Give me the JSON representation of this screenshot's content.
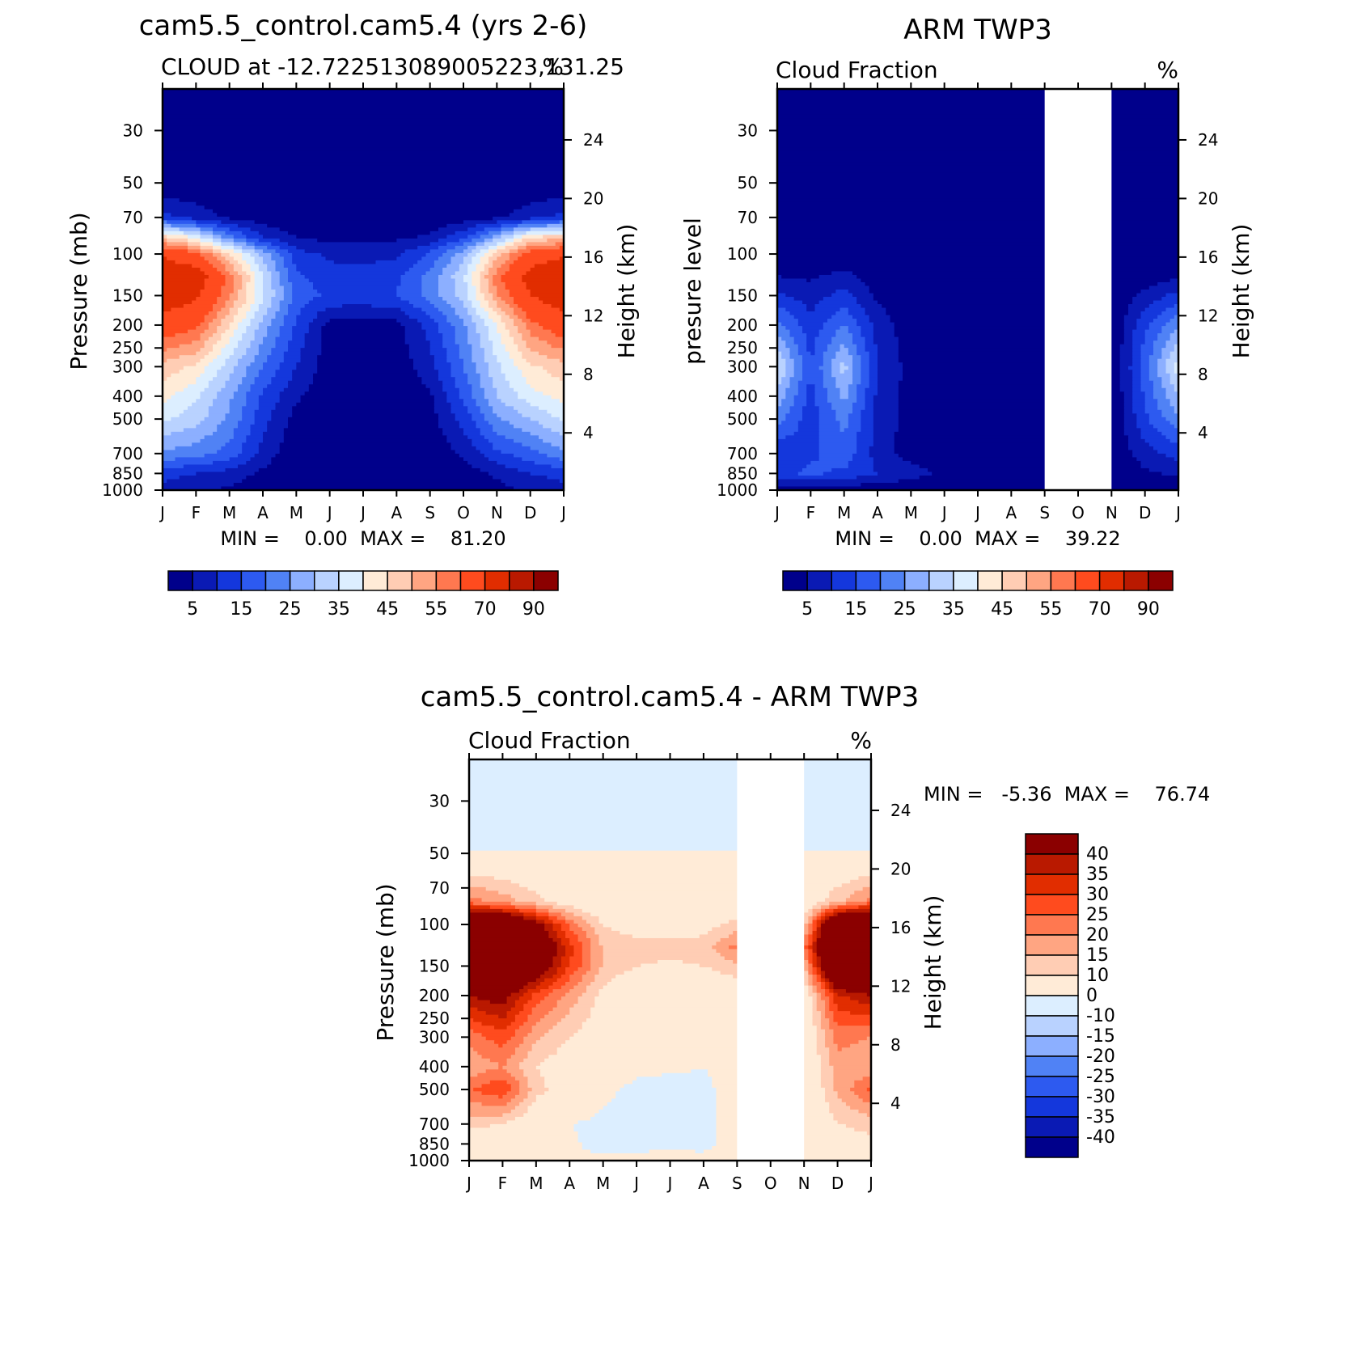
{
  "chart_data": [
    {
      "type": "heatmap",
      "id": "p1",
      "title": "cam5.5_control.cam5.4 (yrs 2-6)",
      "subtitle_left": "CLOUD at -12.722513089005223,131.25",
      "subtitle_right": "%",
      "ylabel": "Pressure (mb)",
      "ylabel_right": "Height (km)",
      "x_categories": [
        "J",
        "F",
        "M",
        "A",
        "M",
        "J",
        "J",
        "A",
        "S",
        "O",
        "N",
        "D",
        "J"
      ],
      "y_ticks": [
        "30",
        "50",
        "70",
        "100",
        "150",
        "200",
        "250",
        "300",
        "400",
        "500",
        "700",
        "850",
        "1000"
      ],
      "y_right_ticks": [
        "24",
        "20",
        "16",
        "12",
        "8",
        "4"
      ],
      "ylim": [
        1000,
        20
      ],
      "stats": "MIN =    0.00  MAX =    81.20",
      "colorbar_labels": [
        "5",
        "15",
        "25",
        "35",
        "45",
        "55",
        "70",
        "90"
      ],
      "missing_months": [],
      "colors": [
        "#00008b",
        "#0a1ab4",
        "#1437dc",
        "#2d5af0",
        "#5082f5",
        "#8cafff",
        "#b9d2ff",
        "#dceeff",
        "#ffebd7",
        "#ffcdb4",
        "#ffa582",
        "#ff7850",
        "#ff4b1e",
        "#e12d00",
        "#b91900",
        "#8b0000"
      ],
      "levels": [
        5,
        10,
        15,
        20,
        25,
        30,
        35,
        40,
        45,
        50,
        55,
        60,
        70,
        80,
        90
      ],
      "rows": [
        {
          "p": 20,
          "v": [
            0,
            0,
            0,
            0,
            0,
            0,
            0,
            0,
            0,
            0,
            0,
            0,
            0
          ]
        },
        {
          "p": 50,
          "v": [
            0,
            0,
            0,
            0,
            0,
            0,
            0,
            0,
            0,
            0,
            0,
            0,
            0
          ]
        },
        {
          "p": 70,
          "v": [
            12,
            8,
            4,
            2,
            1,
            1,
            1,
            1,
            1,
            2,
            4,
            8,
            12
          ]
        },
        {
          "p": 85,
          "v": [
            48,
            38,
            22,
            10,
            5,
            3,
            3,
            4,
            6,
            14,
            28,
            45,
            48
          ]
        },
        {
          "p": 100,
          "v": [
            68,
            62,
            45,
            28,
            12,
            9,
            8,
            9,
            16,
            28,
            48,
            64,
            68
          ]
        },
        {
          "p": 125,
          "v": [
            80,
            76,
            58,
            35,
            16,
            12,
            12,
            14,
            22,
            34,
            58,
            74,
            80
          ]
        },
        {
          "p": 150,
          "v": [
            76,
            72,
            56,
            36,
            18,
            14,
            14,
            15,
            22,
            32,
            54,
            70,
            76
          ]
        },
        {
          "p": 200,
          "v": [
            66,
            62,
            45,
            28,
            14,
            3,
            2,
            3,
            12,
            24,
            40,
            58,
            66
          ]
        },
        {
          "p": 300,
          "v": [
            48,
            44,
            32,
            20,
            10,
            2,
            1,
            2,
            8,
            20,
            34,
            44,
            48
          ]
        },
        {
          "p": 400,
          "v": [
            42,
            36,
            26,
            14,
            6,
            1,
            0,
            1,
            4,
            16,
            30,
            38,
            42
          ]
        },
        {
          "p": 500,
          "v": [
            36,
            32,
            24,
            12,
            3,
            0,
            0,
            0,
            3,
            12,
            24,
            30,
            36
          ]
        },
        {
          "p": 700,
          "v": [
            24,
            22,
            18,
            8,
            1,
            0,
            0,
            0,
            1,
            6,
            14,
            18,
            24
          ]
        },
        {
          "p": 850,
          "v": [
            12,
            10,
            8,
            4,
            0,
            0,
            0,
            0,
            0,
            2,
            6,
            10,
            12
          ]
        },
        {
          "p": 1000,
          "v": [
            8,
            6,
            4,
            1,
            0,
            0,
            0,
            0,
            0,
            1,
            3,
            6,
            8
          ]
        }
      ]
    },
    {
      "type": "heatmap",
      "id": "p2",
      "title": "ARM TWP3",
      "subtitle_left": "Cloud Fraction",
      "subtitle_right": "%",
      "ylabel": "presure level",
      "ylabel_right": "Height (km)",
      "x_categories": [
        "J",
        "F",
        "M",
        "A",
        "M",
        "J",
        "J",
        "A",
        "S",
        "O",
        "N",
        "D",
        "J"
      ],
      "y_ticks": [
        "30",
        "50",
        "70",
        "100",
        "150",
        "200",
        "250",
        "300",
        "400",
        "500",
        "700",
        "850",
        "1000"
      ],
      "y_right_ticks": [
        "24",
        "20",
        "16",
        "12",
        "8",
        "4"
      ],
      "ylim": [
        1000,
        20
      ],
      "stats": "MIN =    0.00  MAX =    39.22",
      "colorbar_labels": [
        "5",
        "15",
        "25",
        "35",
        "45",
        "55",
        "70",
        "90"
      ],
      "missing_months": [
        8,
        10
      ],
      "colors": [
        "#00008b",
        "#0a1ab4",
        "#1437dc",
        "#2d5af0",
        "#5082f5",
        "#8cafff",
        "#b9d2ff",
        "#dceeff",
        "#ffebd7",
        "#ffcdb4",
        "#ffa582",
        "#ff7850",
        "#ff4b1e",
        "#e12d00",
        "#b91900",
        "#8b0000"
      ],
      "levels": [
        5,
        10,
        15,
        20,
        25,
        30,
        35,
        40,
        45,
        50,
        55,
        60,
        70,
        80,
        90
      ],
      "rows": [
        {
          "p": 20,
          "v": [
            0,
            0,
            0,
            0,
            0,
            0,
            0,
            0,
            0,
            0,
            0,
            0,
            0
          ]
        },
        {
          "p": 100,
          "v": [
            0,
            0,
            1,
            0,
            0,
            0,
            0,
            0,
            0,
            0,
            0,
            0,
            0
          ]
        },
        {
          "p": 130,
          "v": [
            6,
            5,
            8,
            2,
            0,
            0,
            0,
            0,
            0,
            0,
            0,
            3,
            6
          ]
        },
        {
          "p": 200,
          "v": [
            22,
            12,
            20,
            8,
            2,
            0,
            0,
            0,
            0,
            0,
            0,
            14,
            24
          ]
        },
        {
          "p": 300,
          "v": [
            36,
            15,
            32,
            10,
            3,
            0,
            0,
            0,
            0,
            0,
            0,
            18,
            38
          ]
        },
        {
          "p": 500,
          "v": [
            22,
            12,
            22,
            8,
            3,
            0,
            0,
            0,
            0,
            0,
            0,
            14,
            24
          ]
        },
        {
          "p": 700,
          "v": [
            10,
            14,
            18,
            8,
            2,
            0,
            0,
            0,
            0,
            0,
            0,
            8,
            12
          ]
        },
        {
          "p": 850,
          "v": [
            14,
            16,
            14,
            10,
            8,
            3,
            0,
            0,
            0,
            0,
            0,
            4,
            6
          ]
        },
        {
          "p": 1000,
          "v": [
            2,
            2,
            2,
            1,
            0,
            0,
            0,
            0,
            0,
            0,
            0,
            0,
            1
          ]
        }
      ]
    },
    {
      "type": "heatmap",
      "id": "p3",
      "title": "cam5.5_control.cam5.4 - ARM TWP3",
      "subtitle_left": "Cloud Fraction",
      "subtitle_right": "%",
      "ylabel": "Pressure (mb)",
      "ylabel_right": "Height (km)",
      "x_categories": [
        "J",
        "F",
        "M",
        "A",
        "M",
        "J",
        "J",
        "A",
        "S",
        "O",
        "N",
        "D",
        "J"
      ],
      "y_ticks": [
        "30",
        "50",
        "70",
        "100",
        "150",
        "200",
        "250",
        "300",
        "400",
        "500",
        "700",
        "850",
        "1000"
      ],
      "y_right_ticks": [
        "24",
        "20",
        "16",
        "12",
        "8",
        "4"
      ],
      "ylim": [
        1000,
        20
      ],
      "stats": "MIN =   -5.36  MAX =    76.74",
      "colorbar_labels": [
        "40",
        "35",
        "30",
        "25",
        "20",
        "15",
        "10",
        "0",
        "-10",
        "-15",
        "-20",
        "-25",
        "-30",
        "-35",
        "-40"
      ],
      "missing_months": [
        8,
        10
      ],
      "colors": [
        "#00008b",
        "#0a1ab4",
        "#1437dc",
        "#2d5af0",
        "#5082f5",
        "#8cafff",
        "#b9d2ff",
        "#dceeff",
        "#ffebd7",
        "#ffcdb4",
        "#ffa582",
        "#ff7850",
        "#ff4b1e",
        "#e12d00",
        "#b91900",
        "#8b0000"
      ],
      "levels": [
        -40,
        -35,
        -30,
        -25,
        -20,
        -15,
        -10,
        0,
        10,
        15,
        20,
        25,
        30,
        35,
        40
      ],
      "rows": [
        {
          "p": 20,
          "v": [
            -2,
            -2,
            -2,
            -2,
            -2,
            -2,
            -2,
            -2,
            -2,
            -2,
            -2,
            -2,
            -2
          ]
        },
        {
          "p": 48,
          "v": [
            -1,
            -1,
            -1,
            -1,
            -1,
            -1,
            -1,
            -1,
            -1,
            -1,
            -1,
            -1,
            -1
          ]
        },
        {
          "p": 52,
          "v": [
            2,
            2,
            2,
            2,
            2,
            2,
            2,
            2,
            2,
            2,
            2,
            2,
            2
          ]
        },
        {
          "p": 80,
          "v": [
            22,
            18,
            12,
            6,
            3,
            2,
            2,
            2,
            3,
            3,
            4,
            14,
            22
          ]
        },
        {
          "p": 100,
          "v": [
            66,
            62,
            44,
            24,
            10,
            7,
            6,
            7,
            12,
            12,
            12,
            62,
            66
          ]
        },
        {
          "p": 125,
          "v": [
            76,
            72,
            54,
            32,
            14,
            12,
            12,
            13,
            22,
            22,
            22,
            72,
            76
          ]
        },
        {
          "p": 150,
          "v": [
            70,
            66,
            50,
            30,
            14,
            10,
            9,
            10,
            14,
            14,
            14,
            66,
            70
          ]
        },
        {
          "p": 200,
          "v": [
            40,
            44,
            28,
            18,
            8,
            3,
            2,
            3,
            4,
            4,
            4,
            34,
            40
          ]
        },
        {
          "p": 300,
          "v": [
            22,
            28,
            16,
            10,
            6,
            2,
            1,
            2,
            3,
            3,
            3,
            22,
            20
          ]
        },
        {
          "p": 400,
          "v": [
            16,
            20,
            10,
            6,
            3,
            1,
            1,
            0,
            2,
            2,
            2,
            18,
            16
          ]
        },
        {
          "p": 500,
          "v": [
            24,
            30,
            12,
            6,
            1,
            -1,
            -2,
            -1,
            2,
            2,
            2,
            16,
            26
          ]
        },
        {
          "p": 700,
          "v": [
            12,
            10,
            4,
            0,
            -1,
            -2,
            -1,
            -1,
            2,
            2,
            2,
            10,
            12
          ]
        },
        {
          "p": 850,
          "v": [
            2,
            2,
            2,
            1,
            -2,
            -2,
            -1,
            -1,
            2,
            2,
            2,
            6,
            8
          ]
        },
        {
          "p": 1000,
          "v": [
            4,
            3,
            2,
            1,
            1,
            2,
            2,
            1,
            2,
            2,
            2,
            4,
            6
          ]
        }
      ]
    }
  ]
}
